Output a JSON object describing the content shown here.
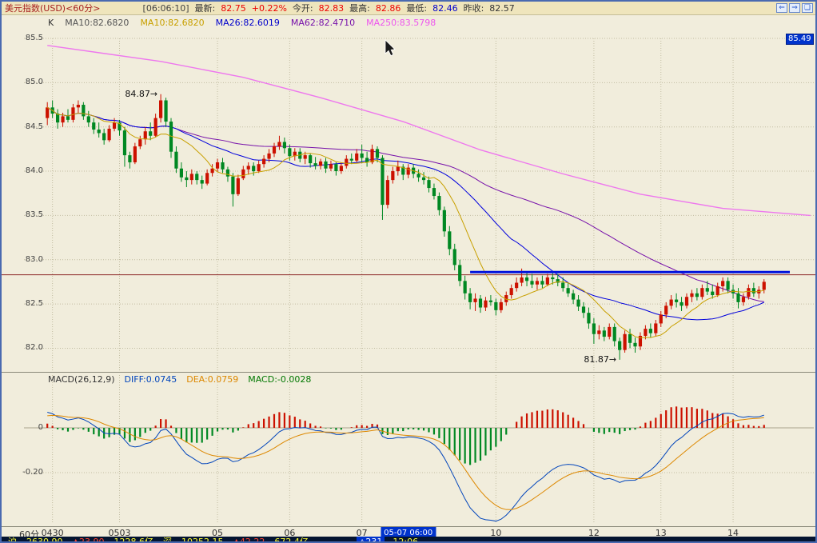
{
  "titlebar": {
    "segments": [
      {
        "text": "美元指数(USD)<60分>",
        "color": "#a82222"
      },
      {
        "text": "[06:06:10]",
        "color": "#444444",
        "gap": true
      },
      {
        "text": "最新:",
        "color": "#333333"
      },
      {
        "text": "82.75",
        "color": "#ee0000"
      },
      {
        "text": "+0.22%",
        "color": "#ee0000"
      },
      {
        "text": "今开:",
        "color": "#333333"
      },
      {
        "text": "82.83",
        "color": "#ee0000"
      },
      {
        "text": "最高:",
        "color": "#333333"
      },
      {
        "text": "82.86",
        "color": "#ee0000"
      },
      {
        "text": "最低:",
        "color": "#333333"
      },
      {
        "text": "82.46",
        "color": "#0000cc"
      },
      {
        "text": "昨收:",
        "color": "#333333"
      },
      {
        "text": "82.57",
        "color": "#333333"
      }
    ],
    "icons": [
      {
        "glyph": "⇐",
        "name": "page-left-icon"
      },
      {
        "glyph": "⇒",
        "name": "page-right-icon"
      },
      {
        "glyph": "❏",
        "name": "window-mode-icon"
      }
    ]
  },
  "indicator_labels": {
    "price": [
      {
        "text": "K",
        "color": "#333333"
      },
      {
        "text": "MA10:82.6820",
        "color": "#555555"
      },
      {
        "text": "MA10:82.6820",
        "color": "#c8a000"
      },
      {
        "text": "MA26:82.6019",
        "color": "#0000cc"
      },
      {
        "text": "MA62:82.4710",
        "color": "#7711aa"
      },
      {
        "text": "MA250:83.5798",
        "color": "#ee55ee"
      }
    ],
    "macd": [
      {
        "text": "MACD(26,12,9)",
        "color": "#333333"
      },
      {
        "text": "DIFF:0.0745",
        "color": "#0044bb"
      },
      {
        "text": "DEA:0.0759",
        "color": "#dd8800"
      },
      {
        "text": "MACD:-0.0028",
        "color": "#007700"
      }
    ]
  },
  "axis": {
    "period_label": "60分"
  },
  "statusbar": {
    "left": [
      {
        "text": "沪",
        "color": "#ffff33"
      },
      {
        "text": "2630.90",
        "color": "#ffff33"
      },
      {
        "text": "▲23.90",
        "color": "#ff4433"
      },
      {
        "text": "1228.6亿",
        "color": "#ffff33"
      },
      {
        "text": "深",
        "color": "#ffff33"
      },
      {
        "text": "10252.15",
        "color": "#ffff33"
      },
      {
        "text": "▲42.22",
        "color": "#ff4433"
      },
      {
        "text": "672.4亿",
        "color": "#ffff33"
      }
    ],
    "right": [
      {
        "text": "△231",
        "color": "#ffffff",
        "bg": "#0033cc"
      },
      {
        "text": "12:06",
        "color": "#ffff33"
      }
    ]
  },
  "chart_data": {
    "type": "candlestick+macd",
    "title": "美元指数(USD) 60分钟K线",
    "badge_right": "85.49",
    "price_axis": {
      "ticks": [
        85.5,
        85.0,
        84.5,
        84.0,
        83.5,
        83.0,
        82.5,
        82.0
      ],
      "min": 81.8,
      "max": 85.6
    },
    "x_ticks": [
      {
        "label": "0430",
        "i": 1
      },
      {
        "label": "0503",
        "i": 14
      },
      {
        "label": "05",
        "i": 33
      },
      {
        "label": "06",
        "i": 47
      },
      {
        "label": "07",
        "i": 61
      },
      {
        "label": "10",
        "i": 87
      },
      {
        "label": "12",
        "i": 106
      },
      {
        "label": "13",
        "i": 119
      },
      {
        "label": "14",
        "i": 133
      }
    ],
    "selected_time": {
      "label": "05-07 06:00",
      "i": 70
    },
    "colors": {
      "up": "#cc1100",
      "down": "#008822",
      "ma10": "#c8a000",
      "ma26": "#0000dd",
      "ma62": "#7711aa",
      "ma250": "#ee77ee",
      "diff": "#0044bb",
      "dea": "#dd8800"
    },
    "hline": {
      "price": 82.83,
      "color": "#882222"
    },
    "trendline": {
      "price": 82.86,
      "from_i": 82,
      "to_i": 144,
      "color": "#0011dd"
    },
    "annotations": [
      {
        "text": "84.87→",
        "i": 22,
        "price": 84.87
      },
      {
        "text": "81.87→",
        "i": 111,
        "price": 81.87
      }
    ],
    "ma250_points": [
      [
        0,
        85.42
      ],
      [
        22,
        85.24
      ],
      [
        38,
        85.06
      ],
      [
        53,
        84.83
      ],
      [
        69,
        84.56
      ],
      [
        84,
        84.24
      ],
      [
        100,
        83.97
      ],
      [
        115,
        83.74
      ],
      [
        131,
        83.58
      ],
      [
        148,
        83.5
      ]
    ],
    "macd": {
      "params": "(26,12,9)",
      "ticks": [
        0,
        -0.2
      ],
      "seed": {
        "ema12": 84.66,
        "ema26": 84.59,
        "dea": 0.05
      }
    },
    "candles": [
      [
        84.6,
        84.78,
        84.52,
        84.72
      ],
      [
        84.72,
        84.8,
        84.6,
        84.65
      ],
      [
        84.65,
        84.7,
        84.48,
        84.55
      ],
      [
        84.55,
        84.66,
        84.5,
        84.62
      ],
      [
        84.62,
        84.7,
        84.55,
        84.58
      ],
      [
        84.58,
        84.76,
        84.55,
        84.72
      ],
      [
        84.72,
        84.8,
        84.65,
        84.75
      ],
      [
        84.75,
        84.78,
        84.58,
        84.62
      ],
      [
        84.62,
        84.68,
        84.5,
        84.55
      ],
      [
        84.55,
        84.6,
        84.42,
        84.47
      ],
      [
        84.47,
        84.55,
        84.38,
        84.43
      ],
      [
        84.43,
        84.48,
        84.3,
        84.35
      ],
      [
        84.35,
        84.52,
        84.33,
        84.48
      ],
      [
        84.48,
        84.6,
        84.45,
        84.55
      ],
      [
        84.55,
        84.58,
        84.4,
        84.46
      ],
      [
        84.46,
        84.5,
        84.05,
        84.18
      ],
      [
        84.18,
        84.22,
        84.03,
        84.1
      ],
      [
        84.1,
        84.32,
        84.08,
        84.28
      ],
      [
        84.28,
        84.4,
        84.25,
        84.36
      ],
      [
        84.36,
        84.5,
        84.3,
        84.45
      ],
      [
        84.45,
        84.55,
        84.35,
        84.4
      ],
      [
        84.4,
        84.65,
        84.38,
        84.6
      ],
      [
        84.6,
        84.87,
        84.55,
        84.8
      ],
      [
        84.8,
        84.83,
        84.5,
        84.56
      ],
      [
        84.56,
        84.6,
        84.15,
        84.22
      ],
      [
        84.22,
        84.28,
        83.98,
        84.03
      ],
      [
        84.03,
        84.1,
        83.88,
        83.93
      ],
      [
        83.93,
        84.0,
        83.82,
        83.9
      ],
      [
        83.9,
        84.02,
        83.85,
        83.97
      ],
      [
        83.97,
        84.0,
        83.85,
        83.9
      ],
      [
        83.9,
        83.95,
        83.8,
        83.86
      ],
      [
        83.86,
        84.02,
        83.84,
        83.98
      ],
      [
        83.98,
        84.08,
        83.94,
        84.03
      ],
      [
        84.03,
        84.14,
        83.99,
        84.1
      ],
      [
        84.1,
        84.15,
        83.98,
        84.02
      ],
      [
        84.02,
        84.05,
        83.88,
        83.94
      ],
      [
        83.94,
        83.98,
        83.6,
        83.74
      ],
      [
        83.74,
        83.96,
        83.72,
        83.92
      ],
      [
        83.92,
        84.06,
        83.9,
        84.02
      ],
      [
        84.02,
        84.1,
        83.96,
        84.06
      ],
      [
        84.06,
        84.1,
        83.95,
        84.0
      ],
      [
        84.0,
        84.12,
        83.98,
        84.08
      ],
      [
        84.08,
        84.18,
        84.04,
        84.14
      ],
      [
        84.14,
        84.25,
        84.1,
        84.2
      ],
      [
        84.2,
        84.32,
        84.16,
        84.28
      ],
      [
        84.28,
        84.4,
        84.24,
        84.33
      ],
      [
        84.33,
        84.38,
        84.2,
        84.26
      ],
      [
        84.26,
        84.3,
        84.12,
        84.17
      ],
      [
        84.17,
        84.26,
        84.12,
        84.22
      ],
      [
        84.22,
        84.26,
        84.1,
        84.14
      ],
      [
        84.14,
        84.22,
        84.08,
        84.18
      ],
      [
        84.18,
        84.2,
        84.04,
        84.09
      ],
      [
        84.09,
        84.16,
        84.02,
        84.06
      ],
      [
        84.06,
        84.14,
        84.02,
        84.11
      ],
      [
        84.11,
        84.15,
        83.98,
        84.03
      ],
      [
        84.03,
        84.12,
        84.0,
        84.08
      ],
      [
        84.08,
        84.1,
        83.95,
        84.0
      ],
      [
        84.0,
        84.1,
        83.97,
        84.06
      ],
      [
        84.06,
        84.18,
        84.03,
        84.14
      ],
      [
        84.14,
        84.2,
        84.08,
        84.12
      ],
      [
        84.12,
        84.25,
        84.1,
        84.2
      ],
      [
        84.2,
        84.3,
        84.1,
        84.15
      ],
      [
        84.15,
        84.22,
        84.05,
        84.1
      ],
      [
        84.1,
        84.3,
        84.08,
        84.25
      ],
      [
        84.25,
        84.28,
        84.1,
        84.15
      ],
      [
        84.15,
        84.18,
        83.45,
        83.62
      ],
      [
        83.62,
        83.95,
        83.58,
        83.9
      ],
      [
        83.9,
        84.05,
        83.86,
        84.0
      ],
      [
        84.0,
        84.12,
        83.95,
        84.05
      ],
      [
        84.05,
        84.08,
        83.9,
        83.96
      ],
      [
        83.96,
        84.08,
        83.92,
        84.04
      ],
      [
        84.04,
        84.08,
        83.92,
        83.97
      ],
      [
        83.97,
        84.02,
        83.88,
        83.93
      ],
      [
        83.93,
        83.99,
        83.85,
        83.9
      ],
      [
        83.9,
        83.94,
        83.76,
        83.81
      ],
      [
        83.81,
        83.86,
        83.68,
        83.72
      ],
      [
        83.72,
        83.76,
        83.5,
        83.56
      ],
      [
        83.56,
        83.6,
        83.26,
        83.32
      ],
      [
        83.32,
        83.38,
        83.05,
        83.12
      ],
      [
        83.12,
        83.18,
        82.88,
        82.94
      ],
      [
        82.94,
        83.0,
        82.7,
        82.76
      ],
      [
        82.76,
        82.82,
        82.55,
        82.62
      ],
      [
        82.62,
        82.68,
        82.44,
        82.52
      ],
      [
        82.52,
        82.62,
        82.42,
        82.56
      ],
      [
        82.56,
        82.6,
        82.4,
        82.46
      ],
      [
        82.46,
        82.58,
        82.42,
        82.54
      ],
      [
        82.54,
        82.6,
        82.48,
        82.52
      ],
      [
        82.52,
        82.56,
        82.37,
        82.43
      ],
      [
        82.43,
        82.56,
        82.4,
        82.52
      ],
      [
        82.52,
        82.64,
        82.48,
        82.6
      ],
      [
        82.6,
        82.72,
        82.56,
        82.68
      ],
      [
        82.68,
        82.8,
        82.64,
        82.74
      ],
      [
        82.74,
        82.9,
        82.7,
        82.8
      ],
      [
        82.8,
        82.86,
        82.7,
        82.76
      ],
      [
        82.76,
        82.84,
        82.68,
        82.72
      ],
      [
        82.72,
        82.8,
        82.66,
        82.76
      ],
      [
        82.76,
        82.82,
        82.68,
        82.72
      ],
      [
        82.72,
        82.84,
        82.7,
        82.8
      ],
      [
        82.8,
        82.87,
        82.72,
        82.78
      ],
      [
        82.78,
        82.84,
        82.7,
        82.74
      ],
      [
        82.74,
        82.8,
        82.64,
        82.68
      ],
      [
        82.68,
        82.74,
        82.58,
        82.62
      ],
      [
        82.62,
        82.66,
        82.5,
        82.55
      ],
      [
        82.55,
        82.6,
        82.42,
        82.47
      ],
      [
        82.47,
        82.52,
        82.34,
        82.4
      ],
      [
        82.4,
        82.46,
        82.22,
        82.28
      ],
      [
        82.28,
        82.34,
        82.05,
        82.16
      ],
      [
        82.16,
        82.26,
        82.1,
        82.2
      ],
      [
        82.2,
        82.24,
        82.08,
        82.13
      ],
      [
        82.13,
        82.28,
        82.1,
        82.24
      ],
      [
        82.24,
        82.28,
        82.02,
        82.08
      ],
      [
        82.08,
        82.12,
        81.87,
        81.98
      ],
      [
        81.98,
        82.2,
        81.95,
        82.16
      ],
      [
        82.16,
        82.22,
        82.0,
        82.06
      ],
      [
        82.06,
        82.12,
        81.95,
        82.02
      ],
      [
        82.02,
        82.18,
        81.98,
        82.14
      ],
      [
        82.14,
        82.26,
        82.1,
        82.22
      ],
      [
        82.22,
        82.28,
        82.12,
        82.17
      ],
      [
        82.17,
        82.32,
        82.14,
        82.28
      ],
      [
        82.28,
        82.42,
        82.24,
        82.38
      ],
      [
        82.38,
        82.52,
        82.34,
        82.48
      ],
      [
        82.48,
        82.6,
        82.44,
        82.55
      ],
      [
        82.55,
        82.62,
        82.46,
        82.52
      ],
      [
        82.52,
        82.58,
        82.42,
        82.48
      ],
      [
        82.48,
        82.62,
        82.45,
        82.58
      ],
      [
        82.58,
        82.66,
        82.52,
        82.62
      ],
      [
        82.62,
        82.68,
        82.54,
        82.58
      ],
      [
        82.58,
        82.72,
        82.55,
        82.68
      ],
      [
        82.68,
        82.76,
        82.6,
        82.64
      ],
      [
        82.64,
        82.72,
        82.56,
        82.6
      ],
      [
        82.6,
        82.74,
        82.58,
        82.7
      ],
      [
        82.7,
        82.8,
        82.64,
        82.76
      ],
      [
        82.76,
        82.8,
        82.62,
        82.66
      ],
      [
        82.66,
        82.72,
        82.56,
        82.62
      ],
      [
        82.62,
        82.68,
        82.45,
        82.52
      ],
      [
        82.52,
        82.62,
        82.48,
        82.58
      ],
      [
        82.58,
        82.72,
        82.55,
        82.68
      ],
      [
        82.68,
        82.74,
        82.58,
        82.62
      ],
      [
        82.62,
        82.7,
        82.56,
        82.66
      ],
      [
        82.66,
        82.78,
        82.62,
        82.75
      ]
    ]
  }
}
